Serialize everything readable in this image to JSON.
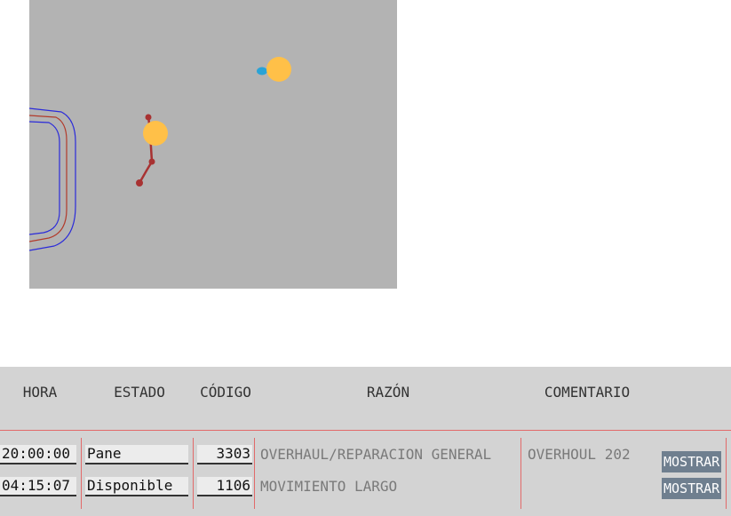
{
  "table": {
    "headers": {
      "hora": "HORA",
      "estado": "ESTADO",
      "codigo": "CÓDIGO",
      "razon": "RAZÓN",
      "comentario": "COMENTARIO"
    },
    "rows": [
      {
        "hora": "20:00:00",
        "estado": "Pane",
        "codigo": "3303",
        "razon": "OVERHAUL/REPARACION GENERAL",
        "comentario": "OVERHOUL 202",
        "button": "MOSTRAR"
      },
      {
        "hora": "04:15:07",
        "estado": "Disponible",
        "codigo": "1106",
        "razon": "MOVIMIENTO LARGO",
        "comentario": "",
        "button": "MOSTRAR"
      }
    ]
  },
  "colors": {
    "map_background": "#b3b3b3",
    "vehicle_marker": "#ffc048",
    "track_red": "#a83232",
    "track_blue": "#2aa3d6",
    "road_blue": "#2b2bd9",
    "road_red": "#b23a2a",
    "table_background": "#d3d3d3",
    "separator": "#e26a6a",
    "button": "#6f7f8f"
  }
}
